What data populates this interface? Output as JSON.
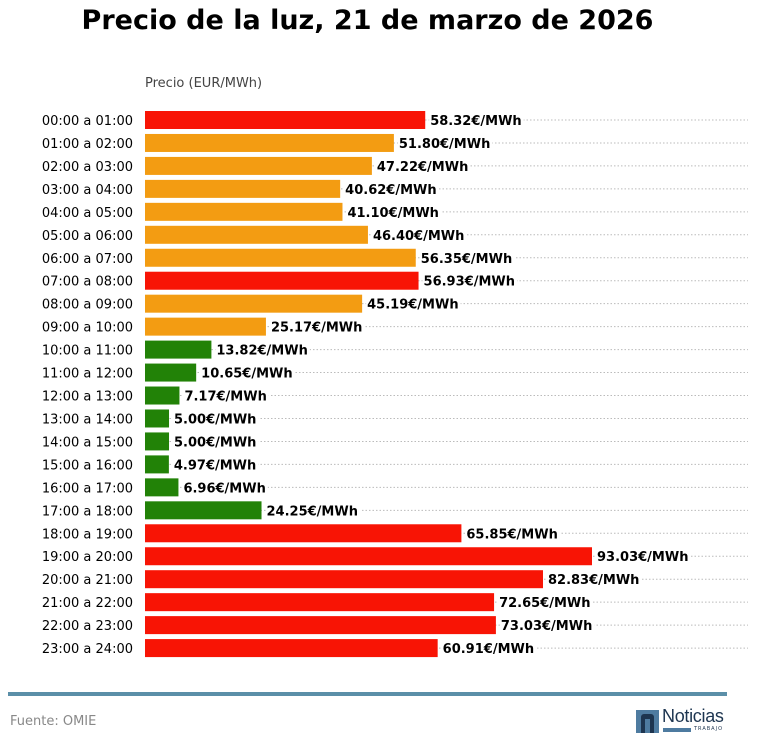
{
  "chart_data": {
    "type": "bar",
    "orientation": "horizontal",
    "title": "Precio de la luz, 21 de marzo de 2026",
    "xlabel": "Precio (EUR/MWh)",
    "value_suffix": "€/MWh",
    "categories": [
      "00:00 a 01:00",
      "01:00 a 02:00",
      "02:00 a 03:00",
      "03:00 a 04:00",
      "04:00 a 05:00",
      "05:00 a 06:00",
      "06:00 a 07:00",
      "07:00 a 08:00",
      "08:00 a 09:00",
      "09:00 a 10:00",
      "10:00 a 11:00",
      "11:00 a 12:00",
      "12:00 a 13:00",
      "13:00 a 14:00",
      "14:00 a 15:00",
      "15:00 a 16:00",
      "16:00 a 17:00",
      "17:00 a 18:00",
      "18:00 a 19:00",
      "19:00 a 20:00",
      "20:00 a 21:00",
      "21:00 a 22:00",
      "22:00 a 23:00",
      "23:00 a 24:00"
    ],
    "values": [
      58.32,
      51.8,
      47.22,
      40.62,
      41.1,
      46.4,
      56.35,
      56.93,
      45.19,
      25.17,
      13.82,
      10.65,
      7.17,
      5.0,
      5.0,
      4.97,
      6.96,
      24.25,
      65.85,
      93.03,
      82.83,
      72.65,
      73.03,
      60.91
    ],
    "value_labels": [
      "58.32€/MWh",
      "51.80€/MWh",
      "47.22€/MWh",
      "40.62€/MWh",
      "41.10€/MWh",
      "46.40€/MWh",
      "56.35€/MWh",
      "56.93€/MWh",
      "45.19€/MWh",
      "25.17€/MWh",
      "13.82€/MWh",
      "10.65€/MWh",
      "7.17€/MWh",
      "5.00€/MWh",
      "5.00€/MWh",
      "4.97€/MWh",
      "6.96€/MWh",
      "24.25€/MWh",
      "65.85€/MWh",
      "93.03€/MWh",
      "82.83€/MWh",
      "72.65€/MWh",
      "73.03€/MWh",
      "60.91€/MWh"
    ],
    "bar_levels": [
      "high",
      "mid",
      "mid",
      "mid",
      "mid",
      "mid",
      "mid",
      "high",
      "mid",
      "mid",
      "low",
      "low",
      "low",
      "low",
      "low",
      "low",
      "low",
      "low",
      "high",
      "high",
      "high",
      "high",
      "high",
      "high"
    ],
    "colors": {
      "high": "#f81405",
      "mid": "#f39c12",
      "low": "#228207"
    },
    "grid": "dotted horizontal",
    "xlim": [
      0,
      93.03
    ]
  },
  "footer": {
    "source": "Fuente: OMIE",
    "logo_text": "Noticias",
    "logo_sub": "TRABAJO"
  },
  "colors": {
    "footer_line": "#5b8fa8"
  }
}
